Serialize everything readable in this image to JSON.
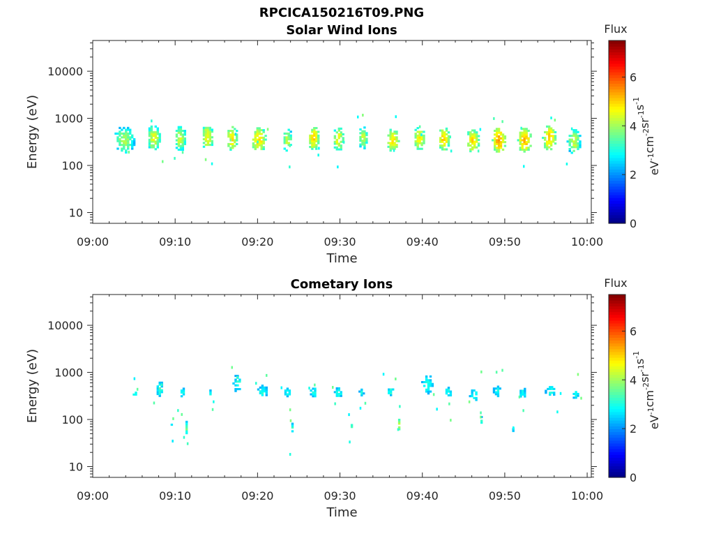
{
  "figure": {
    "title": "RPCICA150216T09.PNG"
  },
  "chart_data": [
    {
      "type": "heatmap",
      "title": "Solar Wind Ions",
      "xlabel": "Time",
      "ylabel": "Energy (eV)",
      "x_tick_labels": [
        "09:00",
        "09:10",
        "09:20",
        "09:30",
        "09:40",
        "09:50",
        "10:00"
      ],
      "x_ticks_minutes": [
        0,
        10,
        20,
        30,
        40,
        50,
        60
      ],
      "xlim_minutes": [
        0,
        60.5
      ],
      "y_scale": "log",
      "ylim": [
        5.9,
        45000
      ],
      "y_ticks": [
        10,
        100,
        1000,
        10000
      ],
      "y_tick_labels": [
        "10",
        "100",
        "1000",
        "10000"
      ],
      "colorbar": {
        "label": "Flux",
        "unit_base": [
          "eV",
          "cm",
          "sr",
          "s"
        ],
        "unit_exponents": [
          "-1",
          "-2",
          "-1",
          "-1"
        ],
        "range": [
          0,
          7.5
        ],
        "ticks": [
          0,
          2,
          4,
          6
        ],
        "tick_labels": [
          "0",
          "2",
          "4",
          "6"
        ],
        "colormap": "jet"
      },
      "bursts": [
        {
          "t": 3.7,
          "e": 330,
          "peak": 4.0,
          "w": 2.6,
          "spread": 0.3
        },
        {
          "t": 7.3,
          "e": 370,
          "peak": 4.5,
          "w": 1.6,
          "spread": 0.28
        },
        {
          "t": 10.5,
          "e": 360,
          "peak": 4.3,
          "w": 1.4,
          "spread": 0.28
        },
        {
          "t": 13.8,
          "e": 380,
          "peak": 4.7,
          "w": 1.4,
          "spread": 0.28
        },
        {
          "t": 16.8,
          "e": 360,
          "peak": 4.8,
          "w": 1.4,
          "spread": 0.28
        },
        {
          "t": 20.0,
          "e": 340,
          "peak": 4.9,
          "w": 1.8,
          "spread": 0.28
        },
        {
          "t": 23.5,
          "e": 330,
          "peak": 4.2,
          "w": 1.2,
          "spread": 0.26
        },
        {
          "t": 26.7,
          "e": 360,
          "peak": 4.9,
          "w": 1.4,
          "spread": 0.26
        },
        {
          "t": 29.7,
          "e": 350,
          "peak": 4.6,
          "w": 1.4,
          "spread": 0.26
        },
        {
          "t": 32.7,
          "e": 370,
          "peak": 4.2,
          "w": 1.2,
          "spread": 0.26
        },
        {
          "t": 36.3,
          "e": 330,
          "peak": 4.8,
          "w": 1.6,
          "spread": 0.26
        },
        {
          "t": 39.5,
          "e": 360,
          "peak": 4.7,
          "w": 1.4,
          "spread": 0.26
        },
        {
          "t": 42.5,
          "e": 350,
          "peak": 5.0,
          "w": 1.4,
          "spread": 0.26
        },
        {
          "t": 46.0,
          "e": 320,
          "peak": 4.9,
          "w": 1.6,
          "spread": 0.26
        },
        {
          "t": 49.2,
          "e": 330,
          "peak": 5.3,
          "w": 1.6,
          "spread": 0.28
        },
        {
          "t": 52.3,
          "e": 330,
          "peak": 5.2,
          "w": 1.6,
          "spread": 0.28
        },
        {
          "t": 55.3,
          "e": 370,
          "peak": 5.1,
          "w": 1.6,
          "spread": 0.28
        },
        {
          "t": 58.3,
          "e": 310,
          "peak": 4.3,
          "w": 1.6,
          "spread": 0.28
        }
      ]
    },
    {
      "type": "heatmap",
      "title": "Cometary Ions",
      "xlabel": "Time",
      "ylabel": "Energy (eV)",
      "x_tick_labels": [
        "09:00",
        "09:10",
        "09:20",
        "09:30",
        "09:40",
        "09:50",
        "10:00"
      ],
      "x_ticks_minutes": [
        0,
        10,
        20,
        30,
        40,
        50,
        60
      ],
      "xlim_minutes": [
        0,
        60.5
      ],
      "y_scale": "log",
      "ylim": [
        5.9,
        45000
      ],
      "y_ticks": [
        10,
        100,
        1000,
        10000
      ],
      "y_tick_labels": [
        "10",
        "100",
        "1000",
        "10000"
      ],
      "colorbar": {
        "label": "Flux",
        "unit_base": [
          "eV",
          "cm",
          "sr",
          "s"
        ],
        "unit_exponents": [
          "-1",
          "-2",
          "-1",
          "-1"
        ],
        "range": [
          0,
          7.5
        ],
        "ticks": [
          0,
          2,
          4,
          6
        ],
        "tick_labels": [
          "0",
          "2",
          "4",
          "6"
        ],
        "colormap": "jet"
      },
      "bursts": [
        {
          "t": 5.0,
          "e": 340,
          "peak": 3.0,
          "w": 0.8,
          "spread": 0.1
        },
        {
          "t": 8.0,
          "e": 420,
          "peak": 3.2,
          "w": 1.0,
          "spread": 0.22
        },
        {
          "t": 10.8,
          "e": 360,
          "peak": 3.0,
          "w": 0.8,
          "spread": 0.16
        },
        {
          "t": 14.2,
          "e": 330,
          "peak": 3.0,
          "w": 0.6,
          "spread": 0.16
        },
        {
          "t": 17.5,
          "e": 560,
          "peak": 3.1,
          "w": 1.6,
          "spread": 0.24
        },
        {
          "t": 20.5,
          "e": 380,
          "peak": 3.1,
          "w": 1.6,
          "spread": 0.16
        },
        {
          "t": 23.5,
          "e": 360,
          "peak": 3.0,
          "w": 1.0,
          "spread": 0.16
        },
        {
          "t": 26.7,
          "e": 360,
          "peak": 3.0,
          "w": 1.2,
          "spread": 0.16
        },
        {
          "t": 29.7,
          "e": 350,
          "peak": 3.0,
          "w": 1.4,
          "spread": 0.18
        },
        {
          "t": 32.5,
          "e": 360,
          "peak": 2.9,
          "w": 1.0,
          "spread": 0.14
        },
        {
          "t": 36.0,
          "e": 380,
          "peak": 3.0,
          "w": 1.4,
          "spread": 0.16
        },
        {
          "t": 40.5,
          "e": 520,
          "peak": 3.0,
          "w": 1.8,
          "spread": 0.3
        },
        {
          "t": 43.0,
          "e": 360,
          "peak": 3.0,
          "w": 1.4,
          "spread": 0.18
        },
        {
          "t": 46.2,
          "e": 330,
          "peak": 3.0,
          "w": 1.6,
          "spread": 0.2
        },
        {
          "t": 49.0,
          "e": 380,
          "peak": 3.0,
          "w": 1.4,
          "spread": 0.18
        },
        {
          "t": 52.0,
          "e": 340,
          "peak": 2.9,
          "w": 1.4,
          "spread": 0.18
        },
        {
          "t": 55.5,
          "e": 390,
          "peak": 3.0,
          "w": 1.8,
          "spread": 0.16
        },
        {
          "t": 58.5,
          "e": 320,
          "peak": 2.9,
          "w": 1.0,
          "spread": 0.14
        },
        {
          "t": 9.4,
          "e": 78,
          "peak": 3.1,
          "w": 0.4,
          "spread": 0.06
        },
        {
          "t": 11.2,
          "e": 65,
          "peak": 3.7,
          "w": 0.4,
          "spread": 0.16
        },
        {
          "t": 24.0,
          "e": 65,
          "peak": 4.0,
          "w": 0.3,
          "spread": 0.12
        },
        {
          "t": 31.2,
          "e": 70,
          "peak": 4.1,
          "w": 0.3,
          "spread": 0.1
        },
        {
          "t": 37.0,
          "e": 75,
          "peak": 4.2,
          "w": 0.4,
          "spread": 0.14
        },
        {
          "t": 47.0,
          "e": 90,
          "peak": 3.2,
          "w": 0.4,
          "spread": 0.12
        },
        {
          "t": 50.8,
          "e": 60,
          "peak": 3.2,
          "w": 0.3,
          "spread": 0.12
        }
      ]
    }
  ]
}
